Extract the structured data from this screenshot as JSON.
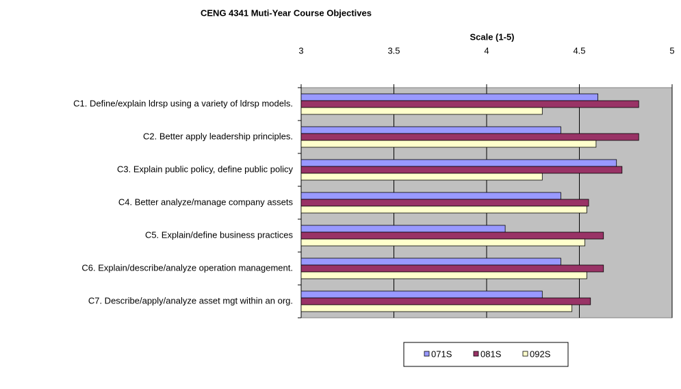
{
  "chart_data": {
    "type": "barh",
    "title": "CENG 4341 Muti-Year Course Objectives",
    "xlabel": "Scale (1-5)",
    "categories": [
      "C1. Define/explain ldrsp using a  variety of ldrsp models.",
      "C2. Better apply leadership principles.",
      "C3. Explain public policy, define public policy",
      "C4. Better analyze/manage company assets",
      "C5. Explain/define business practices",
      "C6. Explain/describe/analyze operation management.",
      "C7. Describe/apply/analyze asset mgt within an org."
    ],
    "series": [
      {
        "name": "071S",
        "color": "#9999ff",
        "values": [
          4.6,
          4.4,
          4.7,
          4.4,
          4.1,
          4.4,
          4.3
        ]
      },
      {
        "name": "081S",
        "color": "#993366",
        "values": [
          4.82,
          4.82,
          4.73,
          4.55,
          4.63,
          4.63,
          4.56
        ]
      },
      {
        "name": "092S",
        "color": "#ffffcc",
        "values": [
          4.3,
          4.59,
          4.3,
          4.54,
          4.53,
          4.54,
          4.46
        ]
      }
    ],
    "xlim": [
      3,
      5
    ],
    "xticks": [
      3,
      {
        "value": 3.5,
        "label": "3.5"
      },
      4,
      {
        "value": 4.5,
        "label": "4.5"
      },
      5
    ],
    "grid": true,
    "legend": "bottom"
  }
}
